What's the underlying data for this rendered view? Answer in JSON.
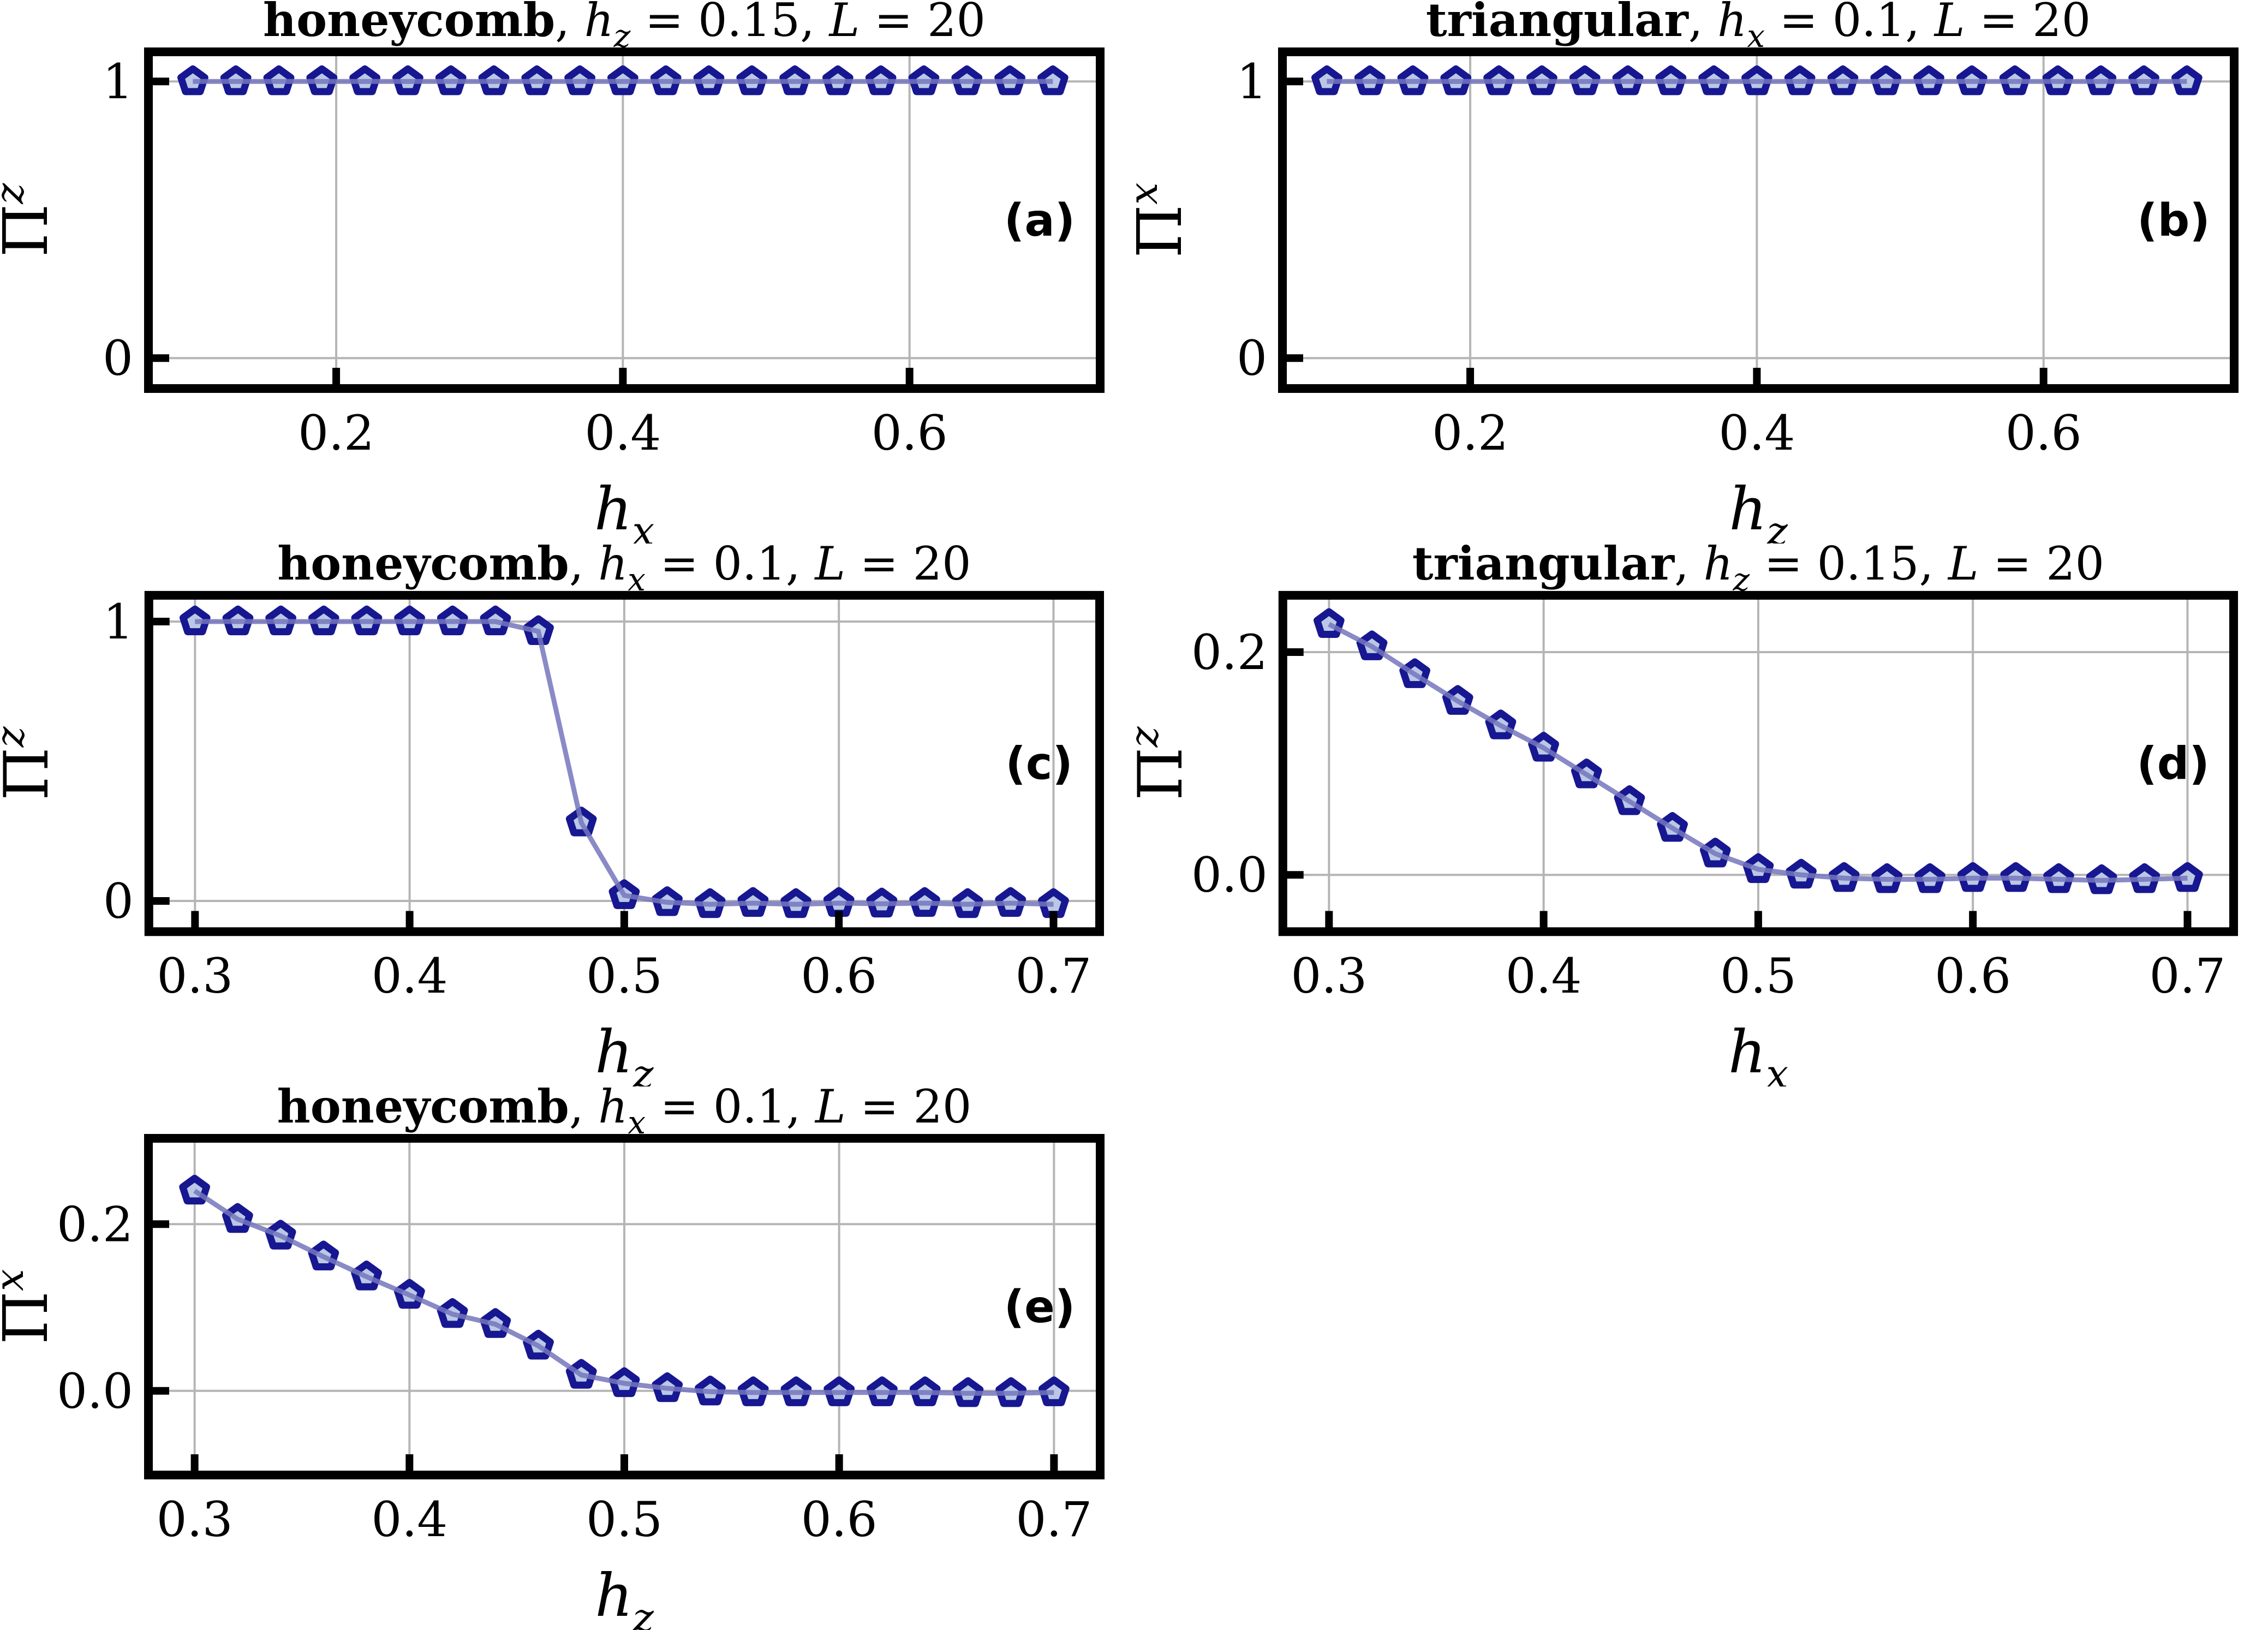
{
  "figure": {
    "background": "#ffffff",
    "description_labels": [
      "(a)",
      "(b)",
      "(c)",
      "(d)",
      "(e)"
    ]
  },
  "style": {
    "marker_edge": "#171791",
    "marker_face": "#bac8e6",
    "line_color": "#7476bc",
    "line_opacity": 0.85,
    "grid_color": "#b5b5b5",
    "frame_color": "#000000",
    "text_color": "#000000"
  },
  "chart_data": [
    {
      "panel": "a",
      "type": "line",
      "panel_label": "(a)",
      "title": "honeycomb, h_z = 0.15, L = 20",
      "title_parts": [
        [
          "honeycomb",
          "b"
        ],
        [
          ", ",
          "r"
        ],
        [
          "h",
          "i"
        ],
        [
          "z",
          "s"
        ],
        [
          " = 0.15, ",
          "r"
        ],
        [
          "L",
          "i"
        ],
        [
          " = 20",
          "r"
        ]
      ],
      "xlabel": {
        "base": "h",
        "sub": "x"
      },
      "ylabel": {
        "base": "Π",
        "sup": "z"
      },
      "x": [
        0.1,
        0.13,
        0.16,
        0.19,
        0.22,
        0.25,
        0.28,
        0.31,
        0.34,
        0.37,
        0.4,
        0.43,
        0.46,
        0.49,
        0.52,
        0.55,
        0.58,
        0.61,
        0.64,
        0.67,
        0.7
      ],
      "y": [
        1,
        1,
        1,
        1,
        1,
        1,
        1,
        1,
        1,
        1,
        1,
        1,
        1,
        1,
        1,
        1,
        1,
        1,
        1,
        1,
        1
      ],
      "xticks": [
        0.2,
        0.4,
        0.6
      ],
      "xtick_labels": [
        "0.2",
        "0.4",
        "0.6"
      ],
      "yticks": [
        0,
        1
      ],
      "ytick_labels": [
        "0",
        "1"
      ],
      "xlim": [
        0.069,
        0.733
      ],
      "ylim": [
        -0.11,
        1.107
      ],
      "grid": true
    },
    {
      "panel": "b",
      "type": "line",
      "panel_label": "(b)",
      "title": "triangular, h_x = 0.1, L = 20",
      "title_parts": [
        [
          "triangular",
          "b"
        ],
        [
          ", ",
          "r"
        ],
        [
          "h",
          "i"
        ],
        [
          "x",
          "s"
        ],
        [
          " = 0.1, ",
          "r"
        ],
        [
          "L",
          "i"
        ],
        [
          " = 20",
          "r"
        ]
      ],
      "xlabel": {
        "base": "h",
        "sub": "z"
      },
      "ylabel": {
        "base": "Π",
        "sup": "x"
      },
      "x": [
        0.1,
        0.13,
        0.16,
        0.19,
        0.22,
        0.25,
        0.28,
        0.31,
        0.34,
        0.37,
        0.4,
        0.43,
        0.46,
        0.49,
        0.52,
        0.55,
        0.58,
        0.61,
        0.64,
        0.67,
        0.7
      ],
      "y": [
        1,
        1,
        1,
        1,
        1,
        1,
        1,
        1,
        1,
        1,
        1,
        1,
        1,
        1,
        1,
        1,
        1,
        1,
        1,
        1,
        1
      ],
      "xticks": [
        0.2,
        0.4,
        0.6
      ],
      "xtick_labels": [
        "0.2",
        "0.4",
        "0.6"
      ],
      "yticks": [
        0,
        1
      ],
      "ytick_labels": [
        "0",
        "1"
      ],
      "xlim": [
        0.069,
        0.733
      ],
      "ylim": [
        -0.11,
        1.107
      ],
      "grid": true
    },
    {
      "panel": "c",
      "type": "line",
      "panel_label": "(c)",
      "title": "honeycomb, h_x = 0.1, L = 20",
      "title_parts": [
        [
          "honeycomb",
          "b"
        ],
        [
          ", ",
          "r"
        ],
        [
          "h",
          "i"
        ],
        [
          "x",
          "s"
        ],
        [
          " = 0.1, ",
          "r"
        ],
        [
          "L",
          "i"
        ],
        [
          " = 20",
          "r"
        ]
      ],
      "xlabel": {
        "base": "h",
        "sub": "z"
      },
      "ylabel": {
        "base": "Π",
        "sup": "z"
      },
      "x": [
        0.3,
        0.32,
        0.34,
        0.36,
        0.38,
        0.4,
        0.42,
        0.44,
        0.46,
        0.48,
        0.5,
        0.52,
        0.54,
        0.56,
        0.58,
        0.6,
        0.62,
        0.64,
        0.66,
        0.68,
        0.7
      ],
      "y": [
        1.0,
        1.0,
        1.0,
        1.0,
        1.0,
        1.0,
        1.0,
        1.0,
        0.965,
        0.28,
        0.02,
        -0.005,
        -0.012,
        -0.008,
        -0.012,
        -0.008,
        -0.01,
        -0.008,
        -0.012,
        -0.008,
        -0.012
      ],
      "xticks": [
        0.3,
        0.4,
        0.5,
        0.6,
        0.7
      ],
      "xtick_labels": [
        "0.3",
        "0.4",
        "0.5",
        "0.6",
        "0.7"
      ],
      "yticks": [
        0,
        1
      ],
      "ytick_labels": [
        "0",
        "1"
      ],
      "xlim": [
        0.2785,
        0.7215
      ],
      "ylim": [
        -0.11,
        1.094
      ],
      "grid": true
    },
    {
      "panel": "d",
      "type": "line",
      "panel_label": "(d)",
      "title": "triangular, h_z = 0.15, L = 20",
      "title_parts": [
        [
          "triangular",
          "b"
        ],
        [
          ", ",
          "r"
        ],
        [
          "h",
          "i"
        ],
        [
          "z",
          "s"
        ],
        [
          " = 0.15, ",
          "r"
        ],
        [
          "L",
          "i"
        ],
        [
          " = 20",
          "r"
        ]
      ],
      "xlabel": {
        "base": "h",
        "sub": "x"
      },
      "ylabel": {
        "base": "Π",
        "sup": "z"
      },
      "x": [
        0.3,
        0.32,
        0.34,
        0.36,
        0.38,
        0.4,
        0.42,
        0.44,
        0.46,
        0.48,
        0.5,
        0.52,
        0.54,
        0.56,
        0.58,
        0.6,
        0.62,
        0.64,
        0.66,
        0.68,
        0.7
      ],
      "y": [
        0.225,
        0.205,
        0.18,
        0.156,
        0.134,
        0.114,
        0.09,
        0.066,
        0.042,
        0.019,
        0.005,
        0.0,
        -0.003,
        -0.004,
        -0.004,
        -0.003,
        -0.003,
        -0.004,
        -0.005,
        -0.004,
        -0.003
      ],
      "xticks": [
        0.3,
        0.4,
        0.5,
        0.6,
        0.7
      ],
      "xtick_labels": [
        "0.3",
        "0.4",
        "0.5",
        "0.6",
        "0.7"
      ],
      "yticks": [
        0.0,
        0.2
      ],
      "ytick_labels": [
        "0.0",
        "0.2"
      ],
      "xlim": [
        0.2785,
        0.7215
      ],
      "ylim": [
        -0.051,
        0.251
      ],
      "grid": true
    },
    {
      "panel": "e",
      "type": "line",
      "panel_label": "(e)",
      "title": "honeycomb, h_x = 0.1, L = 20",
      "title_parts": [
        [
          "honeycomb",
          "b"
        ],
        [
          ", ",
          "r"
        ],
        [
          "h",
          "i"
        ],
        [
          "x",
          "s"
        ],
        [
          " = 0.1, ",
          "r"
        ],
        [
          "L",
          "i"
        ],
        [
          " = 20",
          "r"
        ]
      ],
      "xlabel": {
        "base": "h",
        "sub": "z"
      },
      "ylabel": {
        "base": "Π",
        "sup": "x"
      },
      "x": [
        0.3,
        0.32,
        0.34,
        0.36,
        0.38,
        0.4,
        0.42,
        0.44,
        0.46,
        0.48,
        0.5,
        0.52,
        0.54,
        0.56,
        0.58,
        0.6,
        0.62,
        0.64,
        0.66,
        0.68,
        0.7
      ],
      "y": [
        0.24,
        0.206,
        0.186,
        0.161,
        0.137,
        0.115,
        0.092,
        0.08,
        0.054,
        0.019,
        0.009,
        0.003,
        -0.001,
        -0.002,
        -0.002,
        -0.002,
        -0.002,
        -0.002,
        -0.003,
        -0.003,
        -0.002
      ],
      "xticks": [
        0.3,
        0.4,
        0.5,
        0.6,
        0.7
      ],
      "xtick_labels": [
        "0.3",
        "0.4",
        "0.5",
        "0.6",
        "0.7"
      ],
      "yticks": [
        0.0,
        0.2
      ],
      "ytick_labels": [
        "0.0",
        "0.2"
      ],
      "xlim": [
        0.2785,
        0.7215
      ],
      "ylim": [
        -0.101,
        0.303
      ],
      "grid": true
    }
  ]
}
